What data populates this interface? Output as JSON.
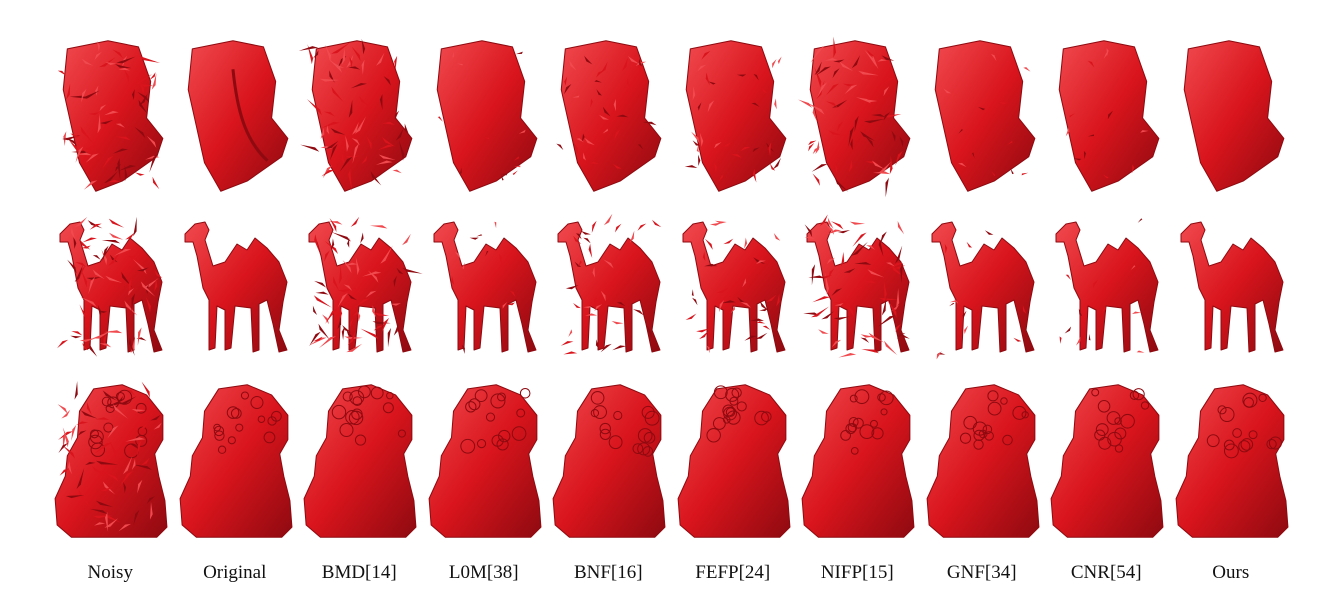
{
  "figure": {
    "columns": [
      {
        "label": "Noisy",
        "noise": "high"
      },
      {
        "label": "Original",
        "noise": "none"
      },
      {
        "label": "BMD[14]",
        "noise": "high"
      },
      {
        "label": "L0M[38]",
        "noise": "low"
      },
      {
        "label": "BNF[16]",
        "noise": "medium"
      },
      {
        "label": "FEFP[24]",
        "noise": "medium"
      },
      {
        "label": "NIFP[15]",
        "noise": "high"
      },
      {
        "label": "GNF[34]",
        "noise": "low"
      },
      {
        "label": "CNR[54]",
        "noise": "low"
      },
      {
        "label": "Ours",
        "noise": "none"
      }
    ],
    "rows": [
      {
        "model": "block-icon"
      },
      {
        "model": "camel-icon"
      },
      {
        "model": "lion-icon"
      }
    ],
    "colors": {
      "mesh": "#d9141c",
      "mesh_dark": "#8e0a10",
      "mesh_light": "#f04a4f",
      "background": "#ffffff"
    }
  }
}
